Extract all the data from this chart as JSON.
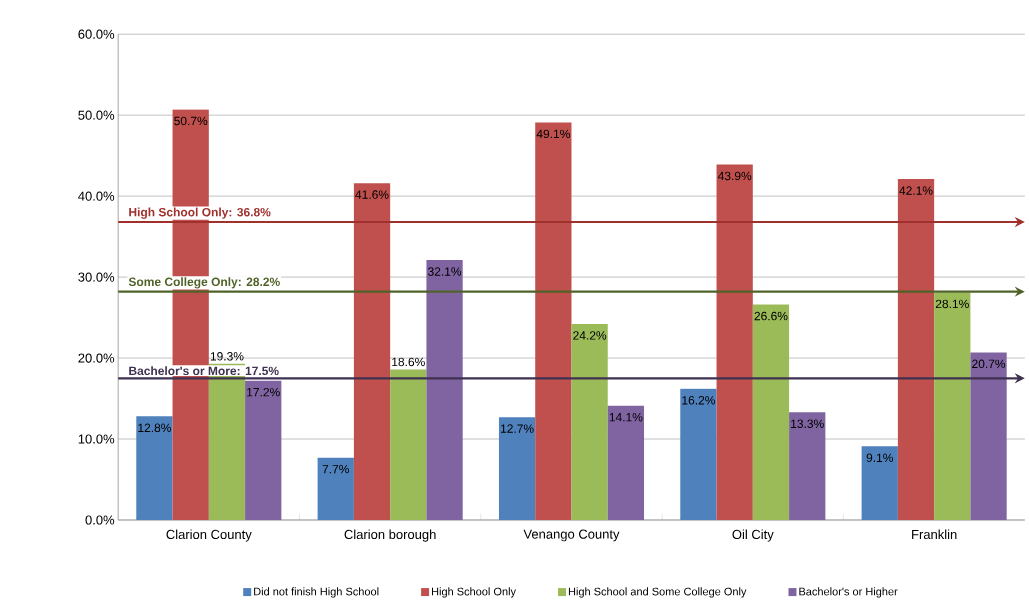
{
  "chart_data": {
    "type": "bar",
    "categories": [
      "Clarion County",
      "Clarion borough",
      "Venango County",
      "Oil City",
      "Franklin"
    ],
    "series": [
      {
        "name": "Did not finish High School",
        "color": "#4f81bd",
        "values": [
          12.8,
          7.7,
          12.7,
          16.2,
          9.1
        ],
        "value_labels": [
          "12.8%",
          "7.7%",
          "12.7%",
          "16.2%",
          "9.1%"
        ]
      },
      {
        "name": "High School Only",
        "color": "#c0504d",
        "values": [
          50.7,
          41.6,
          49.1,
          43.9,
          42.1
        ],
        "value_labels": [
          "50.7%",
          "41.6%",
          "49.1%",
          "43.9%",
          "42.1%"
        ]
      },
      {
        "name": "High School and Some College Only",
        "color": "#9bbb59",
        "values": [
          19.3,
          18.6,
          24.2,
          26.6,
          28.1
        ],
        "value_labels": [
          "19.3%",
          "18.6%",
          "24.2%",
          "26.6%",
          "28.1%"
        ]
      },
      {
        "name": "Bachelor's or Higher",
        "color": "#8064a2",
        "values": [
          17.2,
          32.1,
          14.1,
          13.3,
          20.7
        ],
        "value_labels": [
          "17.2%",
          "32.1%",
          "14.1%",
          "13.3%",
          "20.7%"
        ]
      }
    ],
    "ylim": [
      0,
      60
    ],
    "yticks": [
      {
        "value": 0,
        "label": "0.0%"
      },
      {
        "value": 10,
        "label": "10.0%"
      },
      {
        "value": 20,
        "label": "20.0%"
      },
      {
        "value": 30,
        "label": "30.0%"
      },
      {
        "value": 40,
        "label": "40.0%"
      },
      {
        "value": 50,
        "label": "50.0%"
      },
      {
        "value": 60,
        "label": "60.0%"
      }
    ],
    "grid": "y",
    "legend": "bottom",
    "ref_lines": [
      {
        "axis": "y",
        "value": 36.8,
        "label": "High School Only: 36.8%",
        "color": "#a0302c"
      },
      {
        "axis": "y",
        "value": 28.2,
        "label": "Some College Only: 28.2%",
        "color": "#4f6228"
      },
      {
        "axis": "y",
        "value": 17.5,
        "label": "Bachelor's or More: 17.5%",
        "color": "#3f3151"
      }
    ]
  }
}
